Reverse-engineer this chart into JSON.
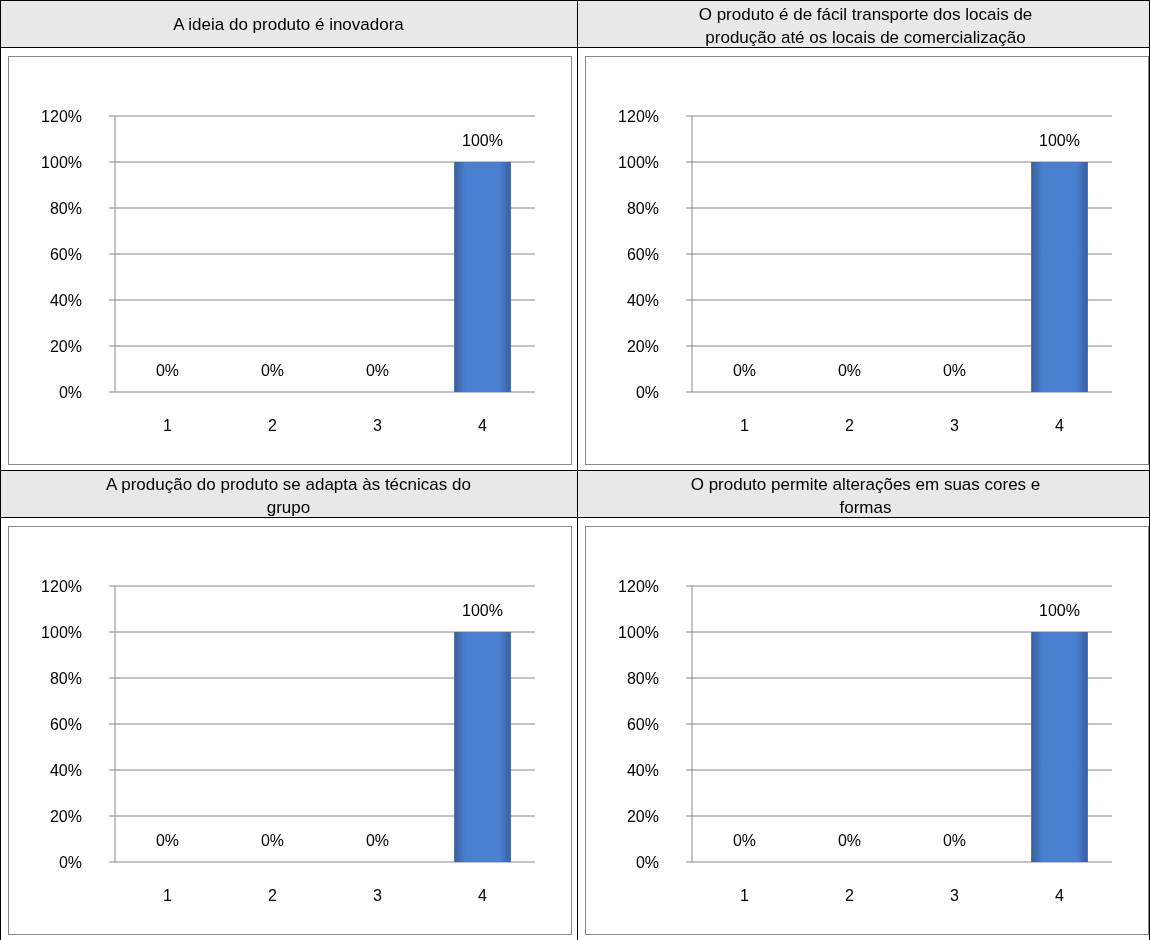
{
  "chart_data": [
    {
      "type": "bar",
      "title": "A ideia do produto é inovadora",
      "categories": [
        "1",
        "2",
        "3",
        "4"
      ],
      "values": [
        0,
        0,
        0,
        100
      ],
      "color": "#4a7fd0",
      "ylim": [
        0,
        120
      ],
      "yticks": [
        {
          "value": 0,
          "label": "0%"
        },
        {
          "value": 20,
          "label": "20%"
        },
        {
          "value": 40,
          "label": "40%"
        },
        {
          "value": 60,
          "label": "60%"
        },
        {
          "value": 80,
          "label": "80%"
        },
        {
          "value": 100,
          "label": "100%"
        },
        {
          "value": 120,
          "label": "120%"
        }
      ],
      "grid": "y",
      "value_labels": [
        "0%",
        "0%",
        "0%",
        "100%"
      ]
    },
    {
      "type": "bar",
      "title": "O produto é de fácil transporte dos locais de produção até os locais de comercialização",
      "categories": [
        "1",
        "2",
        "3",
        "4"
      ],
      "values": [
        0,
        0,
        0,
        100
      ],
      "color": "#4a7fd0",
      "ylim": [
        0,
        120
      ],
      "yticks": [
        {
          "value": 0,
          "label": "0%"
        },
        {
          "value": 20,
          "label": "20%"
        },
        {
          "value": 40,
          "label": "40%"
        },
        {
          "value": 60,
          "label": "60%"
        },
        {
          "value": 80,
          "label": "80%"
        },
        {
          "value": 100,
          "label": "100%"
        },
        {
          "value": 120,
          "label": "120%"
        }
      ],
      "grid": "y",
      "value_labels": [
        "0%",
        "0%",
        "0%",
        "100%"
      ]
    },
    {
      "type": "bar",
      "title": "A produção do produto se adapta às técnicas do grupo",
      "categories": [
        "1",
        "2",
        "3",
        "4"
      ],
      "values": [
        0,
        0,
        0,
        100
      ],
      "color": "#4a7fd0",
      "ylim": [
        0,
        120
      ],
      "yticks": [
        {
          "value": 0,
          "label": "0%"
        },
        {
          "value": 20,
          "label": "20%"
        },
        {
          "value": 40,
          "label": "40%"
        },
        {
          "value": 60,
          "label": "60%"
        },
        {
          "value": 80,
          "label": "80%"
        },
        {
          "value": 100,
          "label": "100%"
        },
        {
          "value": 120,
          "label": "120%"
        }
      ],
      "grid": "y",
      "value_labels": [
        "0%",
        "0%",
        "0%",
        "100%"
      ]
    },
    {
      "type": "bar",
      "title": "O produto permite alterações em suas cores e formas",
      "categories": [
        "1",
        "2",
        "3",
        "4"
      ],
      "values": [
        0,
        0,
        0,
        100
      ],
      "color": "#4a7fd0",
      "ylim": [
        0,
        120
      ],
      "yticks": [
        {
          "value": 0,
          "label": "0%"
        },
        {
          "value": 20,
          "label": "20%"
        },
        {
          "value": 40,
          "label": "40%"
        },
        {
          "value": 60,
          "label": "60%"
        },
        {
          "value": 80,
          "label": "80%"
        },
        {
          "value": 100,
          "label": "100%"
        },
        {
          "value": 120,
          "label": "120%"
        }
      ],
      "grid": "y",
      "value_labels": [
        "0%",
        "0%",
        "0%",
        "100%"
      ]
    }
  ]
}
